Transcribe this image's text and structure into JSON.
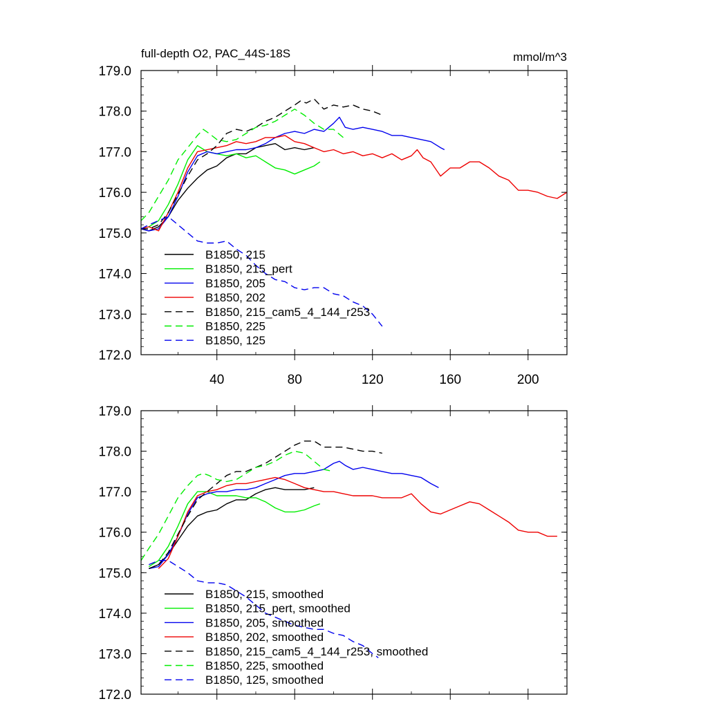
{
  "chart_data": [
    {
      "type": "line",
      "title": "full-depth O2, PAC_44S-18S",
      "units": "mmol/m^3",
      "xlabel": "",
      "ylabel": "",
      "xlim": [
        1,
        220
      ],
      "ylim": [
        172.0,
        179.0
      ],
      "yticks": [
        172.0,
        173.0,
        174.0,
        175.0,
        176.0,
        177.0,
        178.0,
        179.0
      ],
      "ytick_labels": [
        "172.0",
        "173.0",
        "174.0",
        "175.0",
        "176.0",
        "177.0",
        "178.0",
        "179.0"
      ],
      "xticks": [
        40,
        80,
        120,
        160,
        200
      ],
      "xtick_labels": [
        "40",
        "80",
        "120",
        "160",
        "200"
      ],
      "grid": false,
      "legend_position": "bottom-left",
      "series": [
        {
          "name": "B1850, 215",
          "color": "#000000",
          "dash": "solid",
          "x": [
            1,
            5,
            10,
            15,
            20,
            25,
            30,
            35,
            40,
            45,
            50,
            55,
            60,
            65,
            70,
            75,
            80,
            85,
            90
          ],
          "y": [
            175.1,
            175.05,
            175.15,
            175.4,
            175.8,
            176.1,
            176.35,
            176.55,
            176.65,
            176.85,
            176.95,
            176.95,
            177.1,
            177.15,
            177.2,
            177.05,
            177.1,
            177.05,
            177.1
          ]
        },
        {
          "name": "B1850, 215_pert",
          "color": "#00ee00",
          "dash": "solid",
          "x": [
            1,
            5,
            10,
            15,
            20,
            25,
            30,
            35,
            40,
            45,
            50,
            55,
            60,
            65,
            70,
            75,
            80,
            85,
            90,
            93
          ],
          "y": [
            175.1,
            175.15,
            175.3,
            175.7,
            176.2,
            176.8,
            177.15,
            177.0,
            176.95,
            176.9,
            176.95,
            176.85,
            176.9,
            176.75,
            176.6,
            176.55,
            176.45,
            176.55,
            176.65,
            176.75
          ]
        },
        {
          "name": "B1850, 205",
          "color": "#0000ee",
          "dash": "solid",
          "x": [
            1,
            5,
            10,
            15,
            20,
            25,
            30,
            35,
            40,
            45,
            50,
            55,
            60,
            65,
            70,
            75,
            80,
            85,
            90,
            95,
            100,
            103,
            106,
            110,
            115,
            120,
            125,
            130,
            135,
            140,
            145,
            150,
            155,
            157
          ],
          "y": [
            175.1,
            175.05,
            175.1,
            175.4,
            175.9,
            176.5,
            176.9,
            177.0,
            176.95,
            177.0,
            177.05,
            177.05,
            177.1,
            177.2,
            177.35,
            177.45,
            177.5,
            177.45,
            177.55,
            177.5,
            177.7,
            177.85,
            177.6,
            177.55,
            177.6,
            177.55,
            177.5,
            177.4,
            177.4,
            177.35,
            177.3,
            177.25,
            177.1,
            177.05
          ]
        },
        {
          "name": "B1850, 202",
          "color": "#ee0000",
          "dash": "solid",
          "x": [
            1,
            5,
            10,
            15,
            20,
            25,
            30,
            35,
            40,
            45,
            50,
            55,
            60,
            65,
            70,
            75,
            80,
            85,
            90,
            95,
            100,
            105,
            110,
            115,
            120,
            125,
            130,
            135,
            140,
            143,
            146,
            150,
            155,
            160,
            165,
            170,
            175,
            180,
            185,
            190,
            195,
            200,
            205,
            210,
            215,
            220
          ],
          "y": [
            175.1,
            175.15,
            175.05,
            175.5,
            176.0,
            176.6,
            177.0,
            177.05,
            177.1,
            177.15,
            177.25,
            177.2,
            177.25,
            177.35,
            177.35,
            177.4,
            177.25,
            177.2,
            177.1,
            177.0,
            177.05,
            176.95,
            177.0,
            176.9,
            176.95,
            176.85,
            176.95,
            176.8,
            176.9,
            177.05,
            176.85,
            176.75,
            176.4,
            176.6,
            176.6,
            176.75,
            176.75,
            176.6,
            176.4,
            176.3,
            176.05,
            176.05,
            176.0,
            175.9,
            175.85,
            176.0
          ]
        },
        {
          "name": "B1850, 215_cam5_4_144_r253",
          "color": "#000000",
          "dash": "dashed",
          "x": [
            1,
            5,
            10,
            15,
            20,
            25,
            30,
            35,
            40,
            45,
            50,
            55,
            60,
            65,
            70,
            75,
            80,
            83,
            86,
            90,
            95,
            100,
            105,
            110,
            115,
            120,
            125
          ],
          "y": [
            175.1,
            175.1,
            175.2,
            175.5,
            175.95,
            176.4,
            176.8,
            176.95,
            177.15,
            177.45,
            177.55,
            177.5,
            177.6,
            177.75,
            177.85,
            178.0,
            178.15,
            178.25,
            178.2,
            178.3,
            178.05,
            178.15,
            178.1,
            178.15,
            178.05,
            178.0,
            177.9
          ]
        },
        {
          "name": "B1850, 225",
          "color": "#00ee00",
          "dash": "dashed",
          "x": [
            1,
            5,
            10,
            15,
            20,
            25,
            30,
            33,
            36,
            40,
            45,
            50,
            55,
            60,
            65,
            70,
            75,
            80,
            85,
            90,
            95,
            100,
            105
          ],
          "y": [
            175.3,
            175.5,
            175.9,
            176.3,
            176.8,
            177.1,
            177.4,
            177.55,
            177.45,
            177.3,
            177.25,
            177.3,
            177.45,
            177.6,
            177.65,
            177.75,
            177.9,
            178.05,
            177.9,
            177.7,
            177.55,
            177.55,
            177.35
          ]
        },
        {
          "name": "B1850, 125",
          "color": "#0000ee",
          "dash": "dashed",
          "x": [
            1,
            5,
            10,
            15,
            20,
            25,
            30,
            35,
            40,
            45,
            50,
            55,
            60,
            65,
            70,
            75,
            80,
            85,
            90,
            95,
            100,
            105,
            110,
            115,
            120,
            125
          ],
          "y": [
            175.1,
            175.2,
            175.3,
            175.4,
            175.2,
            175.0,
            174.8,
            174.75,
            174.75,
            174.8,
            174.6,
            174.45,
            174.2,
            174.0,
            173.85,
            173.8,
            173.65,
            173.6,
            173.65,
            173.65,
            173.5,
            173.45,
            173.3,
            173.2,
            173.0,
            172.7
          ]
        }
      ]
    },
    {
      "type": "line",
      "title": "",
      "xlabel": "",
      "ylabel": "",
      "xlim": [
        1,
        220
      ],
      "ylim": [
        172.0,
        179.0
      ],
      "yticks": [
        172.0,
        173.0,
        174.0,
        175.0,
        176.0,
        177.0,
        178.0,
        179.0
      ],
      "ytick_labels": [
        "172.0",
        "173.0",
        "174.0",
        "175.0",
        "176.0",
        "177.0",
        "178.0",
        "179.0"
      ],
      "xticks": [
        40,
        80,
        120,
        160,
        200
      ],
      "grid": false,
      "legend_position": "bottom-left",
      "series": [
        {
          "name": "B1850, 215, smoothed",
          "color": "#000000",
          "dash": "solid",
          "x": [
            5,
            10,
            15,
            20,
            25,
            30,
            35,
            40,
            45,
            50,
            55,
            60,
            65,
            70,
            75,
            80,
            85,
            90
          ],
          "y": [
            175.1,
            175.2,
            175.45,
            175.8,
            176.15,
            176.4,
            176.5,
            176.55,
            176.7,
            176.8,
            176.8,
            176.95,
            177.05,
            177.1,
            177.05,
            177.05,
            177.05,
            177.1
          ]
        },
        {
          "name": "B1850, 215_pert, smoothed",
          "color": "#00ee00",
          "dash": "solid",
          "x": [
            5,
            10,
            15,
            20,
            25,
            30,
            35,
            40,
            45,
            50,
            55,
            60,
            65,
            70,
            75,
            80,
            85,
            90,
            93
          ],
          "y": [
            175.15,
            175.3,
            175.65,
            176.15,
            176.7,
            177.0,
            177.0,
            176.9,
            176.9,
            176.9,
            176.85,
            176.85,
            176.75,
            176.6,
            176.5,
            176.5,
            176.55,
            176.65,
            176.7
          ]
        },
        {
          "name": "B1850, 205, smoothed",
          "color": "#0000ee",
          "dash": "solid",
          "x": [
            5,
            10,
            15,
            20,
            25,
            30,
            35,
            40,
            45,
            50,
            55,
            60,
            65,
            70,
            75,
            80,
            85,
            90,
            95,
            100,
            103,
            106,
            110,
            115,
            120,
            125,
            130,
            135,
            140,
            145,
            150,
            154
          ],
          "y": [
            175.1,
            175.15,
            175.45,
            175.9,
            176.45,
            176.85,
            176.95,
            177.0,
            177.0,
            177.05,
            177.05,
            177.1,
            177.2,
            177.3,
            177.4,
            177.45,
            177.45,
            177.5,
            177.55,
            177.7,
            177.75,
            177.65,
            177.55,
            177.6,
            177.55,
            177.5,
            177.45,
            177.45,
            177.4,
            177.35,
            177.2,
            177.1
          ]
        },
        {
          "name": "B1850, 202, smoothed",
          "color": "#ee0000",
          "dash": "solid",
          "x": [
            10,
            15,
            20,
            25,
            30,
            35,
            40,
            45,
            50,
            55,
            60,
            65,
            70,
            75,
            80,
            85,
            90,
            95,
            100,
            105,
            110,
            115,
            120,
            125,
            130,
            135,
            140,
            145,
            150,
            155,
            160,
            165,
            170,
            175,
            180,
            185,
            190,
            195,
            200,
            205,
            210,
            215
          ],
          "y": [
            175.1,
            175.35,
            175.9,
            176.5,
            176.9,
            177.0,
            177.05,
            177.15,
            177.2,
            177.2,
            177.25,
            177.3,
            177.35,
            177.3,
            177.2,
            177.1,
            177.05,
            177.0,
            177.0,
            176.95,
            176.9,
            176.9,
            176.9,
            176.85,
            176.85,
            176.85,
            176.95,
            176.7,
            176.5,
            176.45,
            176.55,
            176.65,
            176.75,
            176.7,
            176.55,
            176.4,
            176.25,
            176.05,
            176.0,
            176.0,
            175.9,
            175.9
          ]
        },
        {
          "name": "B1850, 215_cam5_4_144_r253, smoothed",
          "color": "#000000",
          "dash": "dashed",
          "x": [
            5,
            10,
            15,
            20,
            25,
            30,
            35,
            40,
            45,
            50,
            55,
            60,
            65,
            70,
            75,
            80,
            85,
            90,
            95,
            100,
            105,
            110,
            115,
            120,
            125
          ],
          "y": [
            175.1,
            175.2,
            175.5,
            175.95,
            176.4,
            176.8,
            177.0,
            177.2,
            177.4,
            177.5,
            177.5,
            177.6,
            177.7,
            177.85,
            178.0,
            178.15,
            178.25,
            178.25,
            178.1,
            178.1,
            178.1,
            178.05,
            178.0,
            178.0,
            177.95
          ]
        },
        {
          "name": "B1850, 225, smoothed",
          "color": "#00ee00",
          "dash": "dashed",
          "x": [
            1,
            5,
            10,
            15,
            20,
            25,
            30,
            33,
            36,
            40,
            45,
            50,
            55,
            60,
            65,
            70,
            75,
            80,
            85,
            90,
            95,
            100
          ],
          "y": [
            175.3,
            175.6,
            175.95,
            176.4,
            176.85,
            177.15,
            177.4,
            177.45,
            177.4,
            177.3,
            177.25,
            177.3,
            177.45,
            177.6,
            177.65,
            177.75,
            177.9,
            178.0,
            177.95,
            177.75,
            177.55,
            177.5
          ]
        },
        {
          "name": "B1850, 125, smoothed",
          "color": "#0000ee",
          "dash": "dashed",
          "x": [
            5,
            10,
            15,
            20,
            25,
            30,
            35,
            40,
            45,
            50,
            55,
            60,
            65,
            70,
            75,
            80,
            85,
            90,
            95,
            100,
            105,
            110,
            115,
            120,
            123
          ],
          "y": [
            175.2,
            175.3,
            175.3,
            175.15,
            175.0,
            174.8,
            174.75,
            174.75,
            174.7,
            174.55,
            174.4,
            174.2,
            174.0,
            173.9,
            173.8,
            173.7,
            173.65,
            173.6,
            173.6,
            173.5,
            173.45,
            173.3,
            173.2,
            173.0,
            172.9
          ]
        }
      ]
    }
  ]
}
